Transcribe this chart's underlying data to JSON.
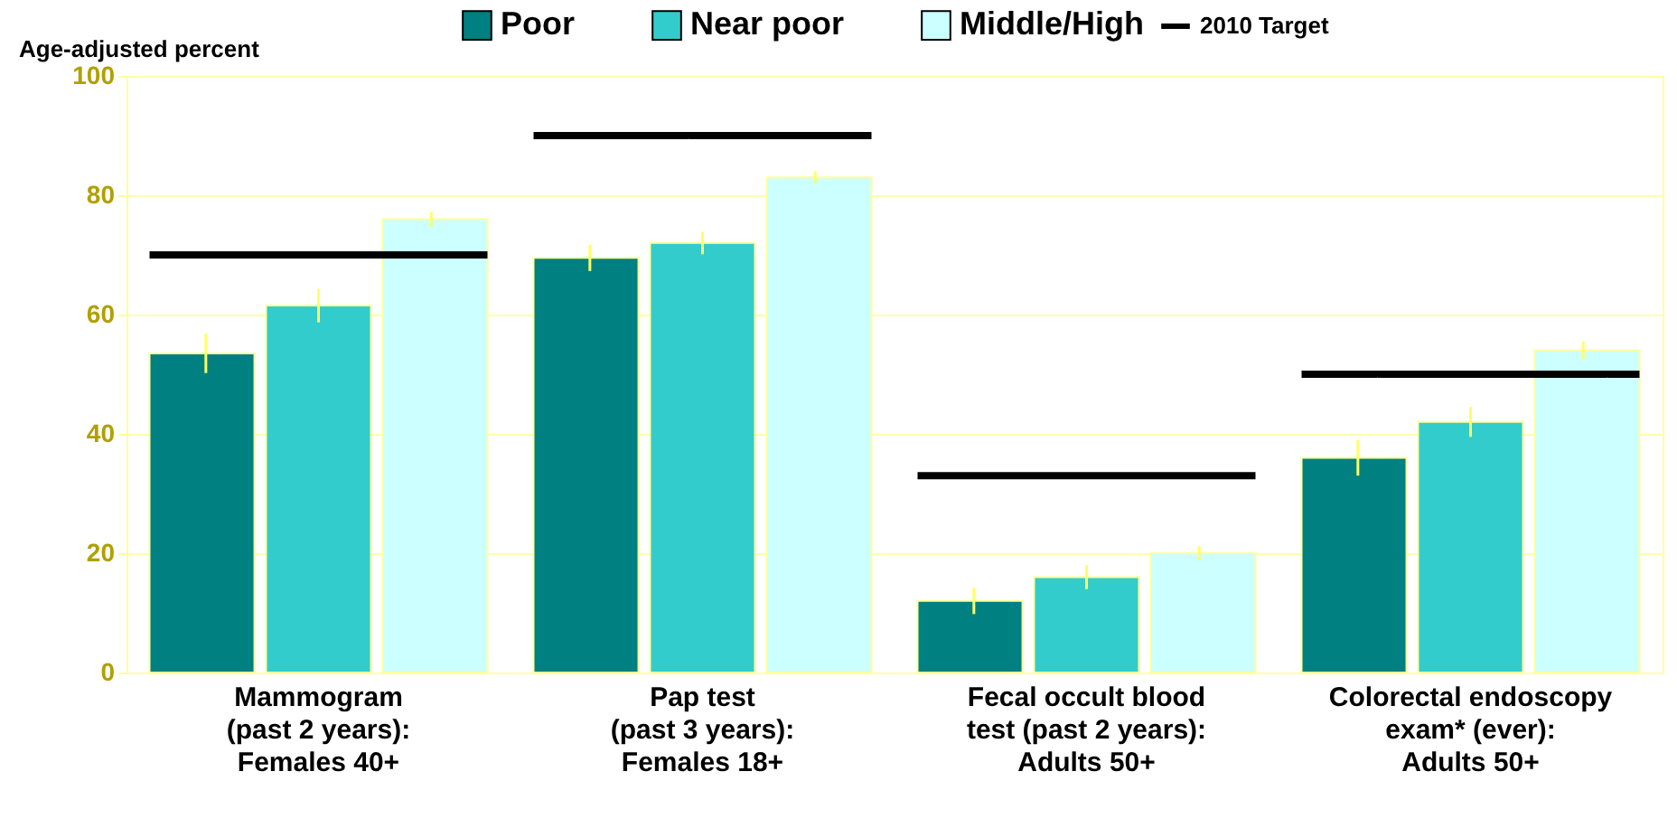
{
  "chart_data": {
    "type": "bar",
    "ylabel": "Age-adjusted percent",
    "categories": [
      "Mammogram\n(past 2 years):\nFemales 40+",
      "Pap test\n(past 3 years):\nFemales 18+",
      "Fecal occult blood\ntest (past 2 years):\nAdults 50+",
      "Colorectal endoscopy\nexam* (ever):\nAdults 50+"
    ],
    "series": [
      {
        "name": "Poor",
        "color": "#008080",
        "values": [
          53.5,
          69.5,
          12,
          36
        ],
        "errors": [
          3.3,
          2.2,
          2.2,
          3
        ]
      },
      {
        "name": "Near poor",
        "color": "#33cccc",
        "values": [
          61.5,
          72,
          16,
          42
        ],
        "errors": [
          2.8,
          1.9,
          2,
          2.5
        ]
      },
      {
        "name": "Middle/High",
        "color": "#ccffff",
        "values": [
          76,
          83,
          20,
          54
        ],
        "errors": [
          1.2,
          1,
          1.2,
          1.5
        ]
      }
    ],
    "ref_lines": [
      {
        "axis": "y",
        "value": 70,
        "label": "2010 Target",
        "color": "#000000"
      },
      {
        "axis": "y",
        "value": 90,
        "color": "#000000"
      },
      {
        "axis": "y",
        "value": 33,
        "color": "#000000"
      },
      {
        "axis": "y",
        "value": 50,
        "color": "#000000"
      }
    ],
    "ylim": [
      0,
      100
    ],
    "yticks": [
      0,
      20,
      40,
      60,
      80,
      100
    ],
    "grid": "y",
    "legend": "top"
  }
}
